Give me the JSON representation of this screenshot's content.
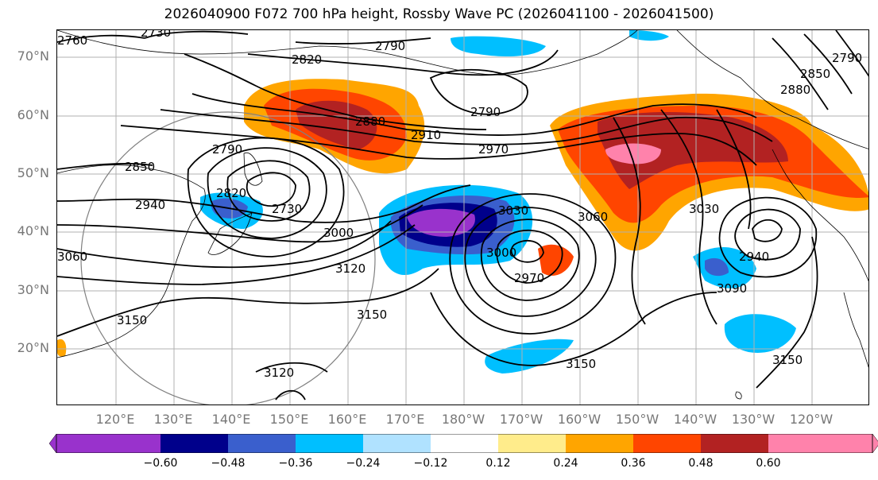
{
  "title": "2026040900 F072 700 hPa height, Rossby Wave PC (2026041100 - 2026041500)",
  "lat_labels": [
    "70°N",
    "60°N",
    "50°N",
    "40°N",
    "30°N",
    "20°N"
  ],
  "lon_labels": [
    "120°E",
    "130°E",
    "140°E",
    "150°E",
    "160°E",
    "170°E",
    "180°W",
    "170°W",
    "160°W",
    "150°W",
    "140°W",
    "130°W",
    "120°W"
  ],
  "contour_labels": [
    "2760",
    "2730",
    "2790",
    "2820",
    "2790",
    "2880",
    "2910",
    "2970",
    "2850",
    "2790",
    "2940",
    "2730",
    "2820",
    "3000",
    "3120",
    "3030",
    "3060",
    "3000",
    "2970",
    "3150",
    "3150",
    "3120",
    "3150",
    "3030",
    "2940",
    "3090",
    "3150",
    "2880",
    "2850",
    "2790",
    "3060"
  ],
  "colorbar": {
    "ticks": [
      "−0.60",
      "−0.48",
      "−0.36",
      "−0.24",
      "−0.12",
      "0.12",
      "0.24",
      "0.36",
      "0.48",
      "0.60"
    ],
    "colors": [
      "#9932cc",
      "#00008b",
      "#3a5fcd",
      "#00bfff",
      "#b0e2ff",
      "#ffffff",
      "#ffec8b",
      "#ffa500",
      "#ff4500",
      "#b22222",
      "#ff82ab"
    ]
  },
  "colors": {
    "land_outline": "#000000",
    "grid": "#b0b0b0",
    "contour": "#000000",
    "circle": "#808080"
  }
}
